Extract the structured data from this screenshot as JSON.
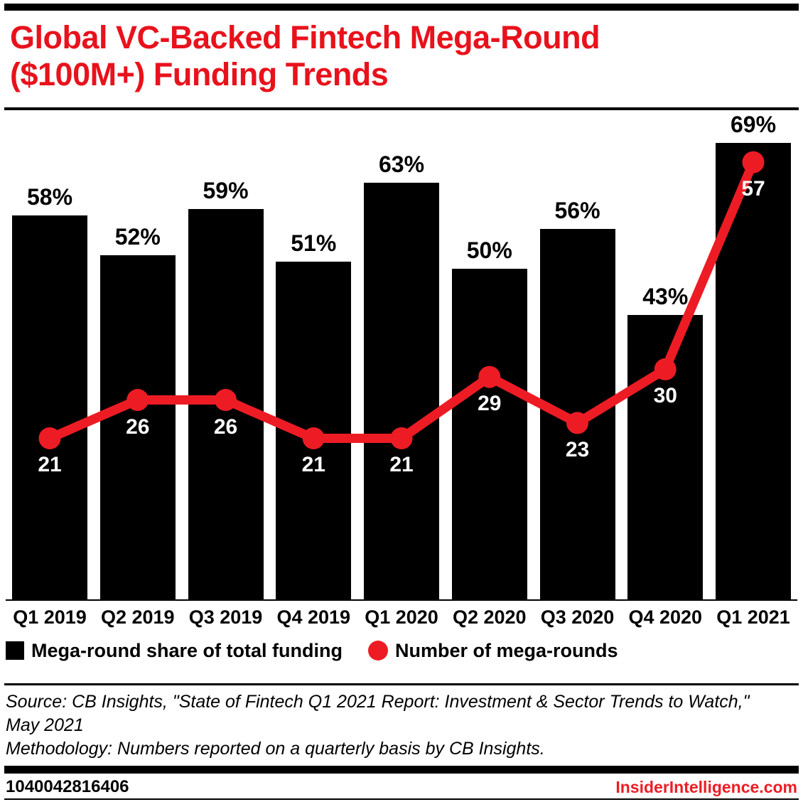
{
  "header": {
    "title_lines": [
      "Global VC-Backed Fintech Mega-Round",
      "($100M+) Funding Trends"
    ],
    "title_color": "#e8121c"
  },
  "chart_data": {
    "type": "bar",
    "subtype": "bar+line combo",
    "categories": [
      "Q1 2019",
      "Q2 2019",
      "Q3 2019",
      "Q4 2019",
      "Q1 2020",
      "Q2 2020",
      "Q3 2020",
      "Q4 2020",
      "Q1 2021"
    ],
    "series": [
      {
        "name": "Mega-round share of total funding",
        "type": "bar",
        "unit": "%",
        "values": [
          58,
          52,
          59,
          51,
          63,
          50,
          56,
          43,
          69
        ],
        "labels": [
          "58%",
          "52%",
          "59%",
          "51%",
          "63%",
          "50%",
          "56%",
          "43%",
          "69%"
        ],
        "color": "#000000",
        "label_position": "above-bar"
      },
      {
        "name": "Number of mega-rounds",
        "type": "line",
        "values": [
          21,
          26,
          26,
          21,
          21,
          29,
          23,
          30,
          57
        ],
        "color": "#ed1c24",
        "marker": "circle",
        "label_position": "below-point",
        "label_color": "#ffffff"
      }
    ],
    "bar_axis_max": 73.7,
    "line_axis_max": 63.6,
    "grid": false,
    "y_axis_visible": false,
    "legend_position": "bottom"
  },
  "notes": {
    "source": "Source: CB Insights, \"State of Fintech Q1 2021 Report: Investment & Sector Trends to Watch,\" May 2021",
    "methodology": "Methodology: Numbers reported on a quarterly basis by CB Insights."
  },
  "footer": {
    "chart_id": "1040042816406",
    "brand": "InsiderIntelligence.com"
  },
  "colors": {
    "accent_red": "#ed1c24",
    "bar_black": "#000000",
    "background": "#ffffff"
  }
}
